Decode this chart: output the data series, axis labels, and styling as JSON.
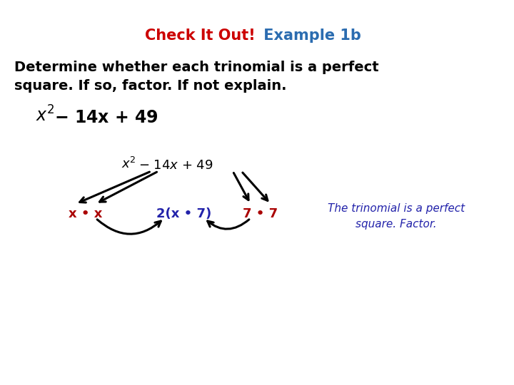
{
  "title_check": "Check It Out!",
  "title_example": " Example 1b",
  "title_check_color": "#CC0000",
  "title_example_color": "#2B6CB0",
  "body_text_line1": "Determine whether each trinomial is a perfect",
  "body_text_line2": "square. If so, factor. If not explain.",
  "below_left": "x • x",
  "below_mid": "2(x • 7)",
  "below_right": "7 • 7",
  "result_text_line1": "The trinomial is a perfect",
  "result_text_line2": "square. Factor.",
  "below_left_color": "#AA0000",
  "below_mid_color": "#2222AA",
  "below_right_color": "#AA0000",
  "result_color": "#2222AA",
  "background_color": "#FFFFFF"
}
